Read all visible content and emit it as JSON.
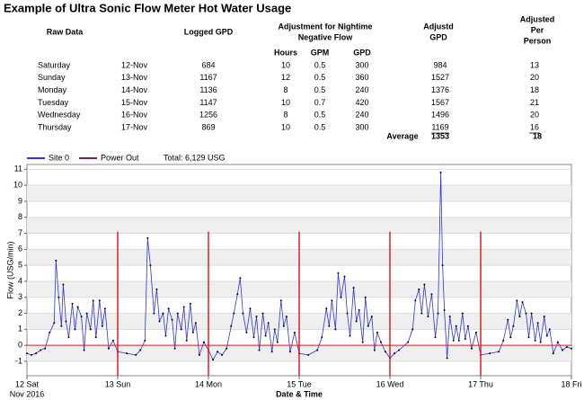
{
  "title": "Example of Ultra Sonic Flow Meter Hot Water Usage",
  "table": {
    "headers": {
      "raw": "Raw Data",
      "logged": "Logged GPD",
      "adjustment": [
        "Adjustment for Nightime",
        "Negative Flow"
      ],
      "adjusted": [
        "Adjustd",
        "GPD"
      ],
      "per_person": [
        "Adjusted",
        "Per",
        "Person"
      ]
    },
    "subheaders": [
      "Hours",
      "GPM",
      "GPD"
    ],
    "rows": [
      [
        "Saturday",
        "12-Nov",
        "684",
        "10",
        "0.5",
        "300",
        "984",
        "13"
      ],
      [
        "Sunday",
        "13-Nov",
        "1167",
        "12",
        "0.5",
        "360",
        "1527",
        "20"
      ],
      [
        "Monday",
        "14-Nov",
        "1136",
        "8",
        "0.5",
        "240",
        "1376",
        "18"
      ],
      [
        "Tuesday",
        "15-Nov",
        "1147",
        "10",
        "0.7",
        "420",
        "1567",
        "21"
      ],
      [
        "Wednesday",
        "16-Nov",
        "1256",
        "8",
        "0.5",
        "240",
        "1496",
        "20"
      ],
      [
        "Thursday",
        "17-Nov",
        "869",
        "10",
        "0.5",
        "300",
        "1169",
        "16"
      ]
    ],
    "average": {
      "label": "Average",
      "adjusted": "1353",
      "per_person": "18"
    }
  },
  "chart_data": {
    "type": "line",
    "xlabel": "Date & Time",
    "ylabel": "Flow (USG/min)",
    "total_label": "Total: 6,129 USG",
    "xtick_sublabel": "Nov 2016",
    "xlim": [
      12,
      18
    ],
    "ylim": [
      -1.9,
      11.3
    ],
    "xticks": [
      {
        "value": 12,
        "label": "12 Sat"
      },
      {
        "value": 13,
        "label": "13 Sun"
      },
      {
        "value": 14,
        "label": "14 Mon"
      },
      {
        "value": 15,
        "label": "15 Tue"
      },
      {
        "value": 16,
        "label": "16 Wed"
      },
      {
        "value": 17,
        "label": "17 Thu"
      },
      {
        "value": 18,
        "label": "18 Fri"
      }
    ],
    "yticks": [
      -1,
      0,
      1,
      2,
      3,
      4,
      5,
      6,
      7,
      8,
      9,
      10,
      11
    ],
    "grid": true,
    "series": [
      {
        "name": "Site 0",
        "color": "#2b35d8",
        "x": [
          12.0,
          12.05,
          12.1,
          12.15,
          12.2,
          12.25,
          12.3,
          12.32,
          12.35,
          12.38,
          12.4,
          12.43,
          12.46,
          12.5,
          12.53,
          12.56,
          12.6,
          12.63,
          12.66,
          12.7,
          12.73,
          12.76,
          12.8,
          12.83,
          12.86,
          12.9,
          12.95,
          13.0,
          13.1,
          13.2,
          13.25,
          13.3,
          13.33,
          13.36,
          13.4,
          13.43,
          13.46,
          13.5,
          13.53,
          13.56,
          13.6,
          13.63,
          13.66,
          13.7,
          13.73,
          13.76,
          13.8,
          13.83,
          13.86,
          13.9,
          13.95,
          14.0,
          14.05,
          14.1,
          14.15,
          14.2,
          14.25,
          14.28,
          14.32,
          14.35,
          14.38,
          14.42,
          14.46,
          14.5,
          14.53,
          14.56,
          14.6,
          14.63,
          14.66,
          14.7,
          14.73,
          14.76,
          14.8,
          14.83,
          14.86,
          14.9,
          14.95,
          15.0,
          15.1,
          15.2,
          15.25,
          15.3,
          15.33,
          15.36,
          15.4,
          15.43,
          15.46,
          15.5,
          15.53,
          15.56,
          15.6,
          15.63,
          15.66,
          15.7,
          15.73,
          15.76,
          15.8,
          15.83,
          15.86,
          15.9,
          15.95,
          16.0,
          16.05,
          16.1,
          16.2,
          16.25,
          16.28,
          16.32,
          16.35,
          16.38,
          16.42,
          16.46,
          16.5,
          16.53,
          16.56,
          16.58,
          16.6,
          16.63,
          16.66,
          16.7,
          16.73,
          16.76,
          16.8,
          16.83,
          16.86,
          16.9,
          16.95,
          17.0,
          17.1,
          17.2,
          17.25,
          17.3,
          17.33,
          17.36,
          17.4,
          17.43,
          17.46,
          17.5,
          17.53,
          17.56,
          17.6,
          17.63,
          17.66,
          17.7,
          17.73,
          17.76,
          17.8,
          17.85,
          17.9,
          17.95,
          18.0
        ],
        "values": [
          -0.5,
          -0.6,
          -0.5,
          -0.3,
          -0.2,
          0.8,
          1.4,
          5.3,
          3.0,
          1.2,
          3.8,
          1.5,
          0.5,
          2.6,
          1.0,
          2.4,
          1.8,
          -0.3,
          2.0,
          1.0,
          2.8,
          0.5,
          2.8,
          1.2,
          2.3,
          -0.2,
          0.3,
          -0.4,
          -0.5,
          -0.6,
          -0.3,
          0.3,
          6.7,
          5.0,
          2.0,
          3.5,
          1.5,
          2.0,
          0.6,
          2.3,
          1.6,
          -0.2,
          2.0,
          1.0,
          2.4,
          0.3,
          2.6,
          0.8,
          1.4,
          -0.6,
          0.2,
          -0.3,
          -0.9,
          -0.4,
          -0.6,
          -0.2,
          1.2,
          2.0,
          3.2,
          4.2,
          2.0,
          0.8,
          2.3,
          0.5,
          1.8,
          -0.3,
          2.0,
          0.6,
          1.4,
          -0.4,
          1.0,
          0.2,
          2.8,
          1.2,
          1.8,
          -0.4,
          0.8,
          -0.5,
          -0.6,
          -0.3,
          0.5,
          2.3,
          1.2,
          2.8,
          1.0,
          4.5,
          3.0,
          4.3,
          2.0,
          0.6,
          3.6,
          1.5,
          2.2,
          0.2,
          3.0,
          1.2,
          1.8,
          -0.3,
          0.8,
          0.2,
          -0.4,
          -0.8,
          -0.5,
          -0.3,
          0.2,
          1.0,
          2.8,
          3.5,
          2.0,
          3.8,
          1.8,
          3.2,
          0.5,
          2.0,
          10.8,
          5.0,
          2.2,
          -0.8,
          1.8,
          0.3,
          1.2,
          0.3,
          2.0,
          0.4,
          1.2,
          -0.2,
          0.8,
          -0.6,
          -0.5,
          -0.4,
          0.3,
          1.6,
          0.5,
          1.2,
          2.8,
          1.8,
          2.7,
          2.0,
          0.5,
          2.0,
          0.3,
          1.4,
          0.2,
          1.8,
          0.6,
          1.0,
          -0.5,
          0.2,
          -0.3,
          -0.1,
          -0.2
        ]
      },
      {
        "name": "Power Out",
        "color": "#7a1f5c",
        "mark_color": "#e02020",
        "x": [
          13,
          14,
          15,
          16,
          17
        ],
        "values": [
          7.1,
          7.1,
          7.1,
          7.1,
          7.1
        ]
      }
    ]
  }
}
